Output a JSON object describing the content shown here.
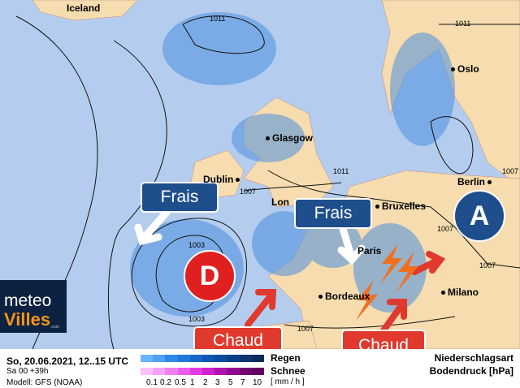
{
  "map": {
    "cities": [
      "Iceland",
      "Oslo",
      "Glasgow",
      "Dublin",
      "Lon",
      "Bruxelles",
      "Paris",
      "Berlin",
      "Bordeaux",
      "Milano"
    ],
    "isobars": [
      "1011",
      "1011",
      "1011",
      "1007",
      "1007",
      "1007",
      "1007",
      "1003",
      "1003",
      "1007"
    ],
    "labels": {
      "frais1": "Frais",
      "frais2": "Frais",
      "chaud1": "Chaud",
      "chaud2": "Chaud",
      "low": "D",
      "high": "A"
    },
    "colors": {
      "sea": "#b4cdee",
      "land": "#f6dcae",
      "rain": "#4a8fe0",
      "frais": "#1f4e8c",
      "chaud": "#e03a2e",
      "high": "#1f4e8c",
      "low": "#e02020"
    }
  },
  "logo": {
    "line1": "meteo",
    "line2": "Villes",
    "suffix": ".com"
  },
  "legend": {
    "date": "So, 20.06.2021, 12..15 UTC",
    "run": "Sa 00 +39h",
    "model": "Modell: GFS (NOAA)",
    "rain": "Regen",
    "snow": "Schnee",
    "unit": "[ mm / h ]",
    "ticks": [
      "0.1",
      "0.2",
      "0.5",
      "1",
      "2",
      "3",
      "5",
      "7",
      "10"
    ],
    "type": "Niederschlagsart",
    "pressure": "Bodendruck [hPa]",
    "rain_colors": [
      "#6cb4f8",
      "#52a0f2",
      "#2e88e6",
      "#1f78dc",
      "#1567c8",
      "#0e58b4",
      "#0b4c9e",
      "#0a4088",
      "#0a3472",
      "#0a2c5c"
    ],
    "snow_colors": [
      "#fbc0fb",
      "#f7a0f7",
      "#f080f0",
      "#ea5cea",
      "#e43ce4",
      "#d020d0",
      "#b010b0",
      "#900890",
      "#700470",
      "#600060"
    ]
  }
}
